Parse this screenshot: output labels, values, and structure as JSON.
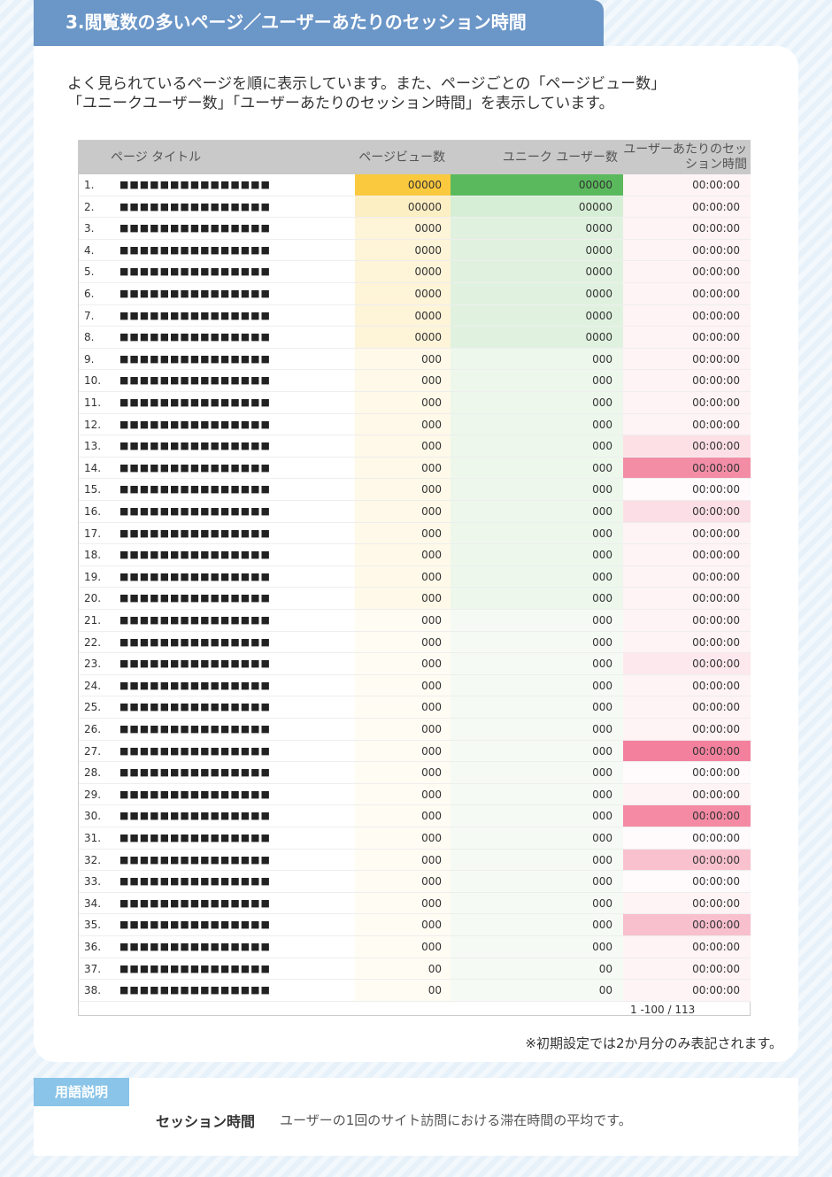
{
  "header": {
    "title": "3.閲覧数の多いページ／ユーザーあたりのセッション時間"
  },
  "intro": {
    "lines": [
      "よく見られているページを順に表示しています。また、ページごとの「ページビュー数」",
      "「ユニークユーザー数」「ユーザーあたりのセッション時間」を表示しています。"
    ]
  },
  "table": {
    "columns": [
      "ページ タイトル",
      "ページビュー数",
      "ユニーク ユーザー数",
      "ユーザーあたりのセッション時間"
    ],
    "rows": [
      [
        "1.",
        "■■■■■■■■■■■■■■■",
        "00000",
        "00000",
        "00:00:00"
      ],
      [
        "2.",
        "■■■■■■■■■■■■■■■",
        "00000",
        "00000",
        "00:00:00"
      ],
      [
        "3.",
        "■■■■■■■■■■■■■■■",
        "0000",
        "0000",
        "00:00:00"
      ],
      [
        "4.",
        "■■■■■■■■■■■■■■■",
        "0000",
        "0000",
        "00:00:00"
      ],
      [
        "5.",
        "■■■■■■■■■■■■■■■",
        "0000",
        "0000",
        "00:00:00"
      ],
      [
        "6.",
        "■■■■■■■■■■■■■■■",
        "0000",
        "0000",
        "00:00:00"
      ],
      [
        "7.",
        "■■■■■■■■■■■■■■■",
        "0000",
        "0000",
        "00:00:00"
      ],
      [
        "8.",
        "■■■■■■■■■■■■■■■",
        "0000",
        "0000",
        "00:00:00"
      ],
      [
        "9.",
        "■■■■■■■■■■■■■■■",
        "000",
        "000",
        "00:00:00"
      ],
      [
        "10.",
        "■■■■■■■■■■■■■■■",
        "000",
        "000",
        "00:00:00"
      ],
      [
        "11.",
        "■■■■■■■■■■■■■■■",
        "000",
        "000",
        "00:00:00"
      ],
      [
        "12.",
        "■■■■■■■■■■■■■■■",
        "000",
        "000",
        "00:00:00"
      ],
      [
        "13.",
        "■■■■■■■■■■■■■■■",
        "000",
        "000",
        "00:00:00"
      ],
      [
        "14.",
        "■■■■■■■■■■■■■■■",
        "000",
        "000",
        "00:00:00"
      ],
      [
        "15.",
        "■■■■■■■■■■■■■■■",
        "000",
        "000",
        "00:00:00"
      ],
      [
        "16.",
        "■■■■■■■■■■■■■■■",
        "000",
        "000",
        "00:00:00"
      ],
      [
        "17.",
        "■■■■■■■■■■■■■■■",
        "000",
        "000",
        "00:00:00"
      ],
      [
        "18.",
        "■■■■■■■■■■■■■■■",
        "000",
        "000",
        "00:00:00"
      ],
      [
        "19.",
        "■■■■■■■■■■■■■■■",
        "000",
        "000",
        "00:00:00"
      ],
      [
        "20.",
        "■■■■■■■■■■■■■■■",
        "000",
        "000",
        "00:00:00"
      ],
      [
        "21.",
        "■■■■■■■■■■■■■■■",
        "000",
        "000",
        "00:00:00"
      ],
      [
        "22.",
        "■■■■■■■■■■■■■■■",
        "000",
        "000",
        "00:00:00"
      ],
      [
        "23.",
        "■■■■■■■■■■■■■■■",
        "000",
        "000",
        "00:00:00"
      ],
      [
        "24.",
        "■■■■■■■■■■■■■■■",
        "000",
        "000",
        "00:00:00"
      ],
      [
        "25.",
        "■■■■■■■■■■■■■■■",
        "000",
        "000",
        "00:00:00"
      ],
      [
        "26.",
        "■■■■■■■■■■■■■■■",
        "000",
        "000",
        "00:00:00"
      ],
      [
        "27.",
        "■■■■■■■■■■■■■■■",
        "000",
        "000",
        "00:00:00"
      ],
      [
        "28.",
        "■■■■■■■■■■■■■■■",
        "000",
        "000",
        "00:00:00"
      ],
      [
        "29.",
        "■■■■■■■■■■■■■■■",
        "000",
        "000",
        "00:00:00"
      ],
      [
        "30.",
        "■■■■■■■■■■■■■■■",
        "000",
        "000",
        "00:00:00"
      ],
      [
        "31.",
        "■■■■■■■■■■■■■■■",
        "000",
        "000",
        "00:00:00"
      ],
      [
        "32.",
        "■■■■■■■■■■■■■■■",
        "000",
        "000",
        "00:00:00"
      ],
      [
        "33.",
        "■■■■■■■■■■■■■■■",
        "000",
        "000",
        "00:00:00"
      ],
      [
        "34.",
        "■■■■■■■■■■■■■■■",
        "000",
        "000",
        "00:00:00"
      ],
      [
        "35.",
        "■■■■■■■■■■■■■■■",
        "000",
        "000",
        "00:00:00"
      ],
      [
        "36.",
        "■■■■■■■■■■■■■■■",
        "000",
        "000",
        "00:00:00"
      ],
      [
        "37.",
        "■■■■■■■■■■■■■■■",
        "00",
        "00",
        "00:00:00"
      ],
      [
        "38.",
        "■■■■■■■■■■■■■■■",
        "00",
        "00",
        "00:00:00"
      ]
    ],
    "cell_colors": [
      [
        "#fbc93d",
        "#5ab95c",
        "#fef3f5"
      ],
      [
        "#fdefc4",
        "#d6eed5",
        "#fef3f5"
      ],
      [
        "#fef4d8",
        "#e0f2df",
        "#fef3f5"
      ],
      [
        "#fef4d8",
        "#e0f2df",
        "#fef3f5"
      ],
      [
        "#fef4d8",
        "#e0f2df",
        "#fef3f5"
      ],
      [
        "#fef4d8",
        "#e0f2df",
        "#fef3f5"
      ],
      [
        "#fef4d8",
        "#e0f2df",
        "#fef3f5"
      ],
      [
        "#fef4d8",
        "#e0f2df",
        "#fef3f5"
      ],
      [
        "#fef9e8",
        "#edf7ec",
        "#fef3f5"
      ],
      [
        "#fef9e8",
        "#edf7ec",
        "#fef3f5"
      ],
      [
        "#fef9e8",
        "#edf7ec",
        "#fef3f5"
      ],
      [
        "#fef9e8",
        "#edf7ec",
        "#fef3f5"
      ],
      [
        "#fef9e8",
        "#edf7ec",
        "#fde0e6"
      ],
      [
        "#fef9e8",
        "#edf7ec",
        "#f38da6"
      ],
      [
        "#fef9e8",
        "#edf7ec",
        "#fffafb"
      ],
      [
        "#fef9e8",
        "#edf7ec",
        "#fcdfe6"
      ],
      [
        "#fef9e8",
        "#edf7ec",
        "#fef3f5"
      ],
      [
        "#fef9e8",
        "#edf7ec",
        "#fef3f5"
      ],
      [
        "#fef9e8",
        "#edf7ec",
        "#fef3f5"
      ],
      [
        "#fef9e8",
        "#edf7ec",
        "#fef3f5"
      ],
      [
        "#fffcf3",
        "#f5fbf4",
        "#fef3f5"
      ],
      [
        "#fffcf3",
        "#f5fbf4",
        "#fef3f5"
      ],
      [
        "#fffcf3",
        "#f5fbf4",
        "#fde8ee"
      ],
      [
        "#fffcf3",
        "#f5fbf4",
        "#fef3f5"
      ],
      [
        "#fffcf3",
        "#f5fbf4",
        "#fef3f5"
      ],
      [
        "#fffcf3",
        "#f5fbf4",
        "#fef3f5"
      ],
      [
        "#fffcf3",
        "#f5fbf4",
        "#f3819d"
      ],
      [
        "#fffcf3",
        "#f5fbf4",
        "#fffafb"
      ],
      [
        "#fffcf3",
        "#f5fbf4",
        "#fef3f5"
      ],
      [
        "#fffcf3",
        "#f5fbf4",
        "#f48aa4"
      ],
      [
        "#fffcf3",
        "#f5fbf4",
        "#fffafb"
      ],
      [
        "#fffcf3",
        "#f5fbf4",
        "#f9c1ce"
      ],
      [
        "#fffcf3",
        "#f5fbf4",
        "#fffafb"
      ],
      [
        "#fffcf3",
        "#f5fbf4",
        "#fef3f5"
      ],
      [
        "#fffcf3",
        "#f5fbf4",
        "#f8bfcd"
      ],
      [
        "#fffcf3",
        "#f5fbf4",
        "#fef3f5"
      ],
      [
        "#fffcf3",
        "#f5fbf4",
        "#fef3f5"
      ],
      [
        "#fffcf3",
        "#f5fbf4",
        "#fef3f5"
      ]
    ],
    "pagination": "1 -100 / 113"
  },
  "note": "※初期設定では2か月分のみ表記されます。",
  "glossary": {
    "label": "用語説明",
    "term": "セッション時間",
    "definition": "ユーザーの1回のサイト訪問における滞在時間の平均です。"
  }
}
